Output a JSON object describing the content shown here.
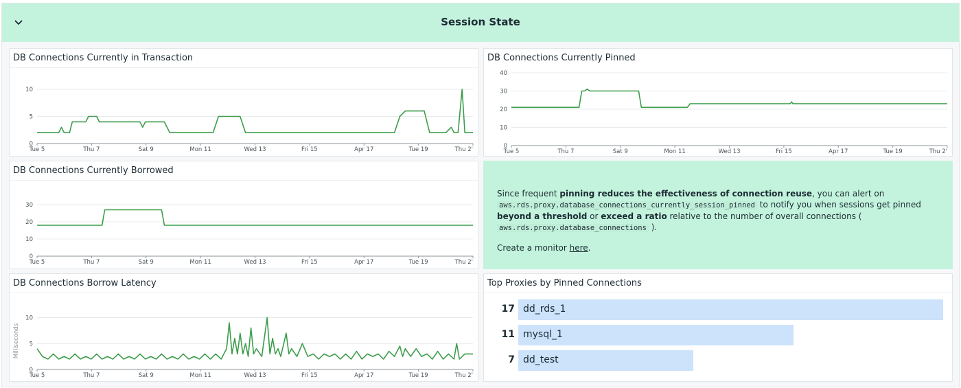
{
  "group": {
    "title": "Session State",
    "collapse_icon": "chevron-down-icon"
  },
  "colors": {
    "line": "#3c9d4a",
    "header_bg": "#c3f3dd",
    "bar": "#cce3fb"
  },
  "x_ticks": [
    "Tue 5",
    "Thu 7",
    "Sat 9",
    "Mon 11",
    "Wed 13",
    "Fri 15",
    "Apr 17",
    "Tue 19",
    "Thu 2'"
  ],
  "widgets": {
    "in_transaction": {
      "title": "DB Connections Currently in Transaction"
    },
    "pinned": {
      "title": "DB Connections Currently Pinned"
    },
    "borrowed": {
      "title": "DB Connections Currently Borrowed"
    },
    "latency": {
      "title": "DB Connections Borrow Latency"
    },
    "note": {
      "intro": "Since frequent ",
      "bold1": "pinning reduces the effectiveness of connection reuse",
      "mid1": ", you can alert on ",
      "code1": "aws.rds.proxy.database_connections_currently_session_pinned",
      "mid2": " to notify you when sessions get pinned ",
      "bold2": "beyond a threshold",
      "mid3": " or ",
      "bold3": "exceed a ratio",
      "mid4": " relative to the number of overall connections ( ",
      "code2": "aws.rds.proxy.database_connections",
      "end": " ).",
      "monitor_prefix": "Create a monitor ",
      "monitor_link": "here",
      "monitor_suffix": "."
    },
    "top_proxies": {
      "title": "Top Proxies by Pinned Connections",
      "max": 17,
      "items": [
        {
          "value": "17",
          "name": "dd_rds_1",
          "v": 17
        },
        {
          "value": "11",
          "name": "mysql_1",
          "v": 11
        },
        {
          "value": "7",
          "name": "dd_test",
          "v": 7
        }
      ]
    }
  },
  "chart_data": [
    {
      "type": "line",
      "title": "DB Connections Currently in Transaction",
      "x_ticks": [
        "Tue 5",
        "Thu 7",
        "Sat 9",
        "Mon 11",
        "Wed 13",
        "Fri 15",
        "Apr 17",
        "Tue 19",
        "Thu 2'"
      ],
      "yticks": [
        0,
        5,
        10
      ],
      "ylim": [
        0,
        10.5
      ],
      "xlim": [
        0,
        16.1
      ],
      "points": [
        [
          0,
          2
        ],
        [
          0.8,
          2
        ],
        [
          0.9,
          3
        ],
        [
          1.0,
          2
        ],
        [
          1.2,
          2
        ],
        [
          1.3,
          4
        ],
        [
          1.8,
          4
        ],
        [
          1.9,
          5
        ],
        [
          2.2,
          5
        ],
        [
          2.3,
          4
        ],
        [
          3.8,
          4
        ],
        [
          3.9,
          3
        ],
        [
          4.0,
          4
        ],
        [
          4.7,
          4
        ],
        [
          4.9,
          2
        ],
        [
          6.5,
          2
        ],
        [
          6.7,
          5
        ],
        [
          7.5,
          5
        ],
        [
          7.7,
          2
        ],
        [
          13.2,
          2
        ],
        [
          13.4,
          5
        ],
        [
          13.6,
          6
        ],
        [
          14.3,
          6
        ],
        [
          14.5,
          2
        ],
        [
          15.1,
          2
        ],
        [
          15.3,
          3
        ],
        [
          15.4,
          2
        ],
        [
          15.55,
          2
        ],
        [
          15.7,
          10
        ],
        [
          15.8,
          2
        ],
        [
          16.1,
          2
        ]
      ]
    },
    {
      "type": "line",
      "title": "DB Connections Currently Pinned",
      "x_ticks": [
        "Tue 5",
        "Thu 7",
        "Sat 9",
        "Mon 11",
        "Wed 13",
        "Fri 15",
        "Apr 17",
        "Tue 19",
        "Thu 2'"
      ],
      "yticks": [
        0,
        10,
        20,
        30,
        40
      ],
      "ylim": [
        0,
        40
      ],
      "xlim": [
        0,
        16.1
      ],
      "points": [
        [
          0,
          21
        ],
        [
          2.5,
          21
        ],
        [
          2.6,
          30
        ],
        [
          2.7,
          30
        ],
        [
          2.8,
          31
        ],
        [
          2.9,
          30
        ],
        [
          4.7,
          30
        ],
        [
          4.8,
          21
        ],
        [
          6.5,
          21
        ],
        [
          6.6,
          23
        ],
        [
          10.3,
          23
        ],
        [
          10.35,
          24
        ],
        [
          10.4,
          23
        ],
        [
          16.1,
          23
        ]
      ]
    },
    {
      "type": "line",
      "title": "DB Connections Currently Borrowed",
      "x_ticks": [
        "Tue 5",
        "Thu 7",
        "Sat 9",
        "Mon 11",
        "Wed 13",
        "Fri 15",
        "Apr 17",
        "Tue 19",
        "Thu 2'"
      ],
      "yticks": [
        0,
        10,
        20,
        30
      ],
      "ylim": [
        0,
        36
      ],
      "xlim": [
        0,
        16.1
      ],
      "points": [
        [
          0,
          18
        ],
        [
          2.4,
          18
        ],
        [
          2.5,
          27
        ],
        [
          4.6,
          27
        ],
        [
          4.7,
          18
        ],
        [
          16.1,
          18
        ]
      ]
    },
    {
      "type": "line",
      "title": "DB Connections Borrow Latency",
      "ylabel": "Milliseconds",
      "x_ticks": [
        "Tue 5",
        "Thu 7",
        "Sat 9",
        "Mon 11",
        "Wed 13",
        "Fri 15",
        "Apr 17",
        "Tue 19",
        "Thu 2'"
      ],
      "yticks": [
        0,
        5,
        10
      ],
      "ylim": [
        0,
        11
      ],
      "xlim": [
        0,
        16.1
      ],
      "points": [
        [
          0,
          4
        ],
        [
          0.2,
          2.5
        ],
        [
          0.4,
          2
        ],
        [
          0.6,
          3
        ],
        [
          0.8,
          2
        ],
        [
          1.0,
          2.5
        ],
        [
          1.2,
          2
        ],
        [
          1.4,
          3
        ],
        [
          1.6,
          2
        ],
        [
          1.8,
          2.5
        ],
        [
          2.0,
          2
        ],
        [
          2.2,
          3
        ],
        [
          2.4,
          2
        ],
        [
          2.6,
          2.5
        ],
        [
          2.8,
          2
        ],
        [
          3.0,
          3
        ],
        [
          3.2,
          2
        ],
        [
          3.4,
          2.5
        ],
        [
          3.6,
          2
        ],
        [
          3.8,
          3
        ],
        [
          4.0,
          2
        ],
        [
          4.2,
          2.5
        ],
        [
          4.4,
          2
        ],
        [
          4.6,
          3
        ],
        [
          4.8,
          2
        ],
        [
          5.0,
          2.5
        ],
        [
          5.2,
          2
        ],
        [
          5.4,
          3
        ],
        [
          5.6,
          2
        ],
        [
          5.8,
          2.5
        ],
        [
          6.0,
          2
        ],
        [
          6.2,
          3
        ],
        [
          6.4,
          2
        ],
        [
          6.6,
          3
        ],
        [
          6.8,
          2
        ],
        [
          7.0,
          4
        ],
        [
          7.1,
          9
        ],
        [
          7.2,
          3
        ],
        [
          7.3,
          6
        ],
        [
          7.4,
          3
        ],
        [
          7.5,
          7
        ],
        [
          7.6,
          3
        ],
        [
          7.7,
          5
        ],
        [
          7.8,
          2.5
        ],
        [
          7.9,
          8
        ],
        [
          8.0,
          3
        ],
        [
          8.1,
          4
        ],
        [
          8.3,
          2.5
        ],
        [
          8.5,
          10
        ],
        [
          8.6,
          3
        ],
        [
          8.7,
          6
        ],
        [
          8.8,
          3
        ],
        [
          8.9,
          4
        ],
        [
          9.0,
          2.5
        ],
        [
          9.2,
          7
        ],
        [
          9.3,
          3
        ],
        [
          9.4,
          4
        ],
        [
          9.6,
          2.5
        ],
        [
          9.8,
          5
        ],
        [
          10.0,
          2.5
        ],
        [
          10.2,
          3
        ],
        [
          10.4,
          2
        ],
        [
          10.6,
          3
        ],
        [
          10.8,
          2.5
        ],
        [
          11.0,
          3
        ],
        [
          11.2,
          2
        ],
        [
          11.4,
          3
        ],
        [
          11.6,
          2
        ],
        [
          11.8,
          3.5
        ],
        [
          12.0,
          2
        ],
        [
          12.2,
          3
        ],
        [
          12.4,
          2.5
        ],
        [
          12.6,
          3
        ],
        [
          12.8,
          2
        ],
        [
          13.0,
          3.5
        ],
        [
          13.2,
          2.5
        ],
        [
          13.4,
          4.5
        ],
        [
          13.5,
          2.5
        ],
        [
          13.6,
          4
        ],
        [
          13.8,
          2.5
        ],
        [
          14.0,
          4
        ],
        [
          14.2,
          2.5
        ],
        [
          14.4,
          3
        ],
        [
          14.6,
          2
        ],
        [
          14.8,
          3.5
        ],
        [
          15.0,
          2
        ],
        [
          15.2,
          3
        ],
        [
          15.4,
          2
        ],
        [
          15.5,
          5
        ],
        [
          15.6,
          2
        ],
        [
          15.8,
          3
        ],
        [
          16.1,
          3
        ]
      ]
    }
  ]
}
